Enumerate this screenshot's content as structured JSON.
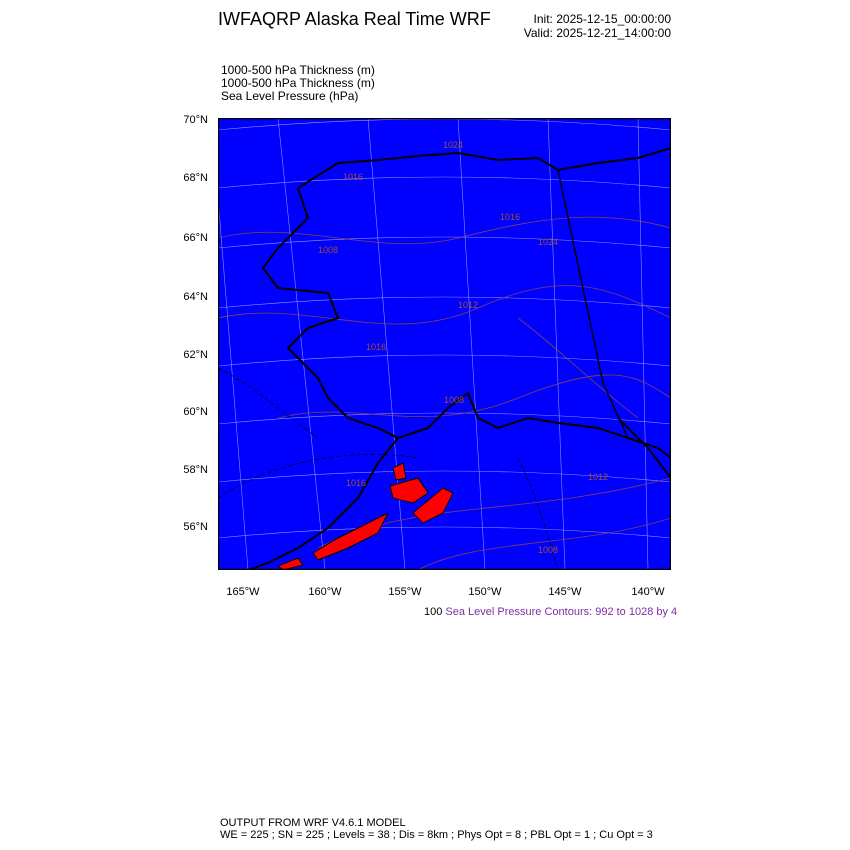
{
  "header": {
    "title": "IWFAQRP Alaska Real Time WRF",
    "init": "Init: 2025-12-15_00:00:00",
    "valid": "Valid: 2025-12-21_14:00:00"
  },
  "fields": [
    "1000-500 hPa Thickness   (m)",
    "1000-500 hPa Thickness   (m)",
    "Sea Level Pressure   (hPa)"
  ],
  "map": {
    "background_color": "#0000ff",
    "land_fill_color": "#0000ff",
    "highlight_color": "#ff0000",
    "contour_color": "#a0522d",
    "lat_labels": [
      "70°N",
      "68°N",
      "66°N",
      "64°N",
      "62°N",
      "60°N",
      "58°N",
      "56°N"
    ],
    "lon_labels": [
      "165°W",
      "160°W",
      "155°W",
      "150°W",
      "145°W",
      "140°W"
    ],
    "contour_labels": [
      "1024",
      "1016",
      "1016",
      "1024",
      "1008",
      "1012",
      "1016",
      "1008",
      "1008",
      "1012",
      "1016"
    ]
  },
  "contour_info": {
    "value": "100",
    "text": "Sea Level Pressure Contours: 992 to 1028 by 4"
  },
  "footer": {
    "line1": "OUTPUT FROM WRF V4.6.1 MODEL",
    "line2": "WE = 225 ; SN = 225 ; Levels = 38 ; Dis = 8km ; Phys Opt = 8 ; PBL Opt = 1 ; Cu Opt = 3"
  }
}
